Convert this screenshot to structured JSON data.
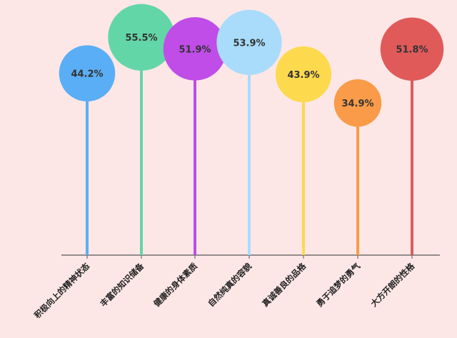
{
  "chart_data": {
    "type": "bar",
    "categories": [
      "积极向上的精神状态",
      "丰富的知识储备",
      "健康的身体素质",
      "自然纯真的容貌",
      "真诚善良的品格",
      "勇于追梦的勇气",
      "大方开朗的性格"
    ],
    "values": [
      44.2,
      55.5,
      51.9,
      53.9,
      43.9,
      34.9,
      51.8
    ],
    "value_labels": [
      "44.2%",
      "55.5%",
      "51.9%",
      "53.9%",
      "43.9%",
      "34.9%",
      "51.8%"
    ],
    "colors": [
      "#5aaef5",
      "#63d6a8",
      "#c04de8",
      "#a8dcfa",
      "#fdd94e",
      "#f99b48",
      "#e05a5a"
    ],
    "unit": "%",
    "ylim": [
      0,
      60
    ],
    "grid": false,
    "legend": "none"
  }
}
